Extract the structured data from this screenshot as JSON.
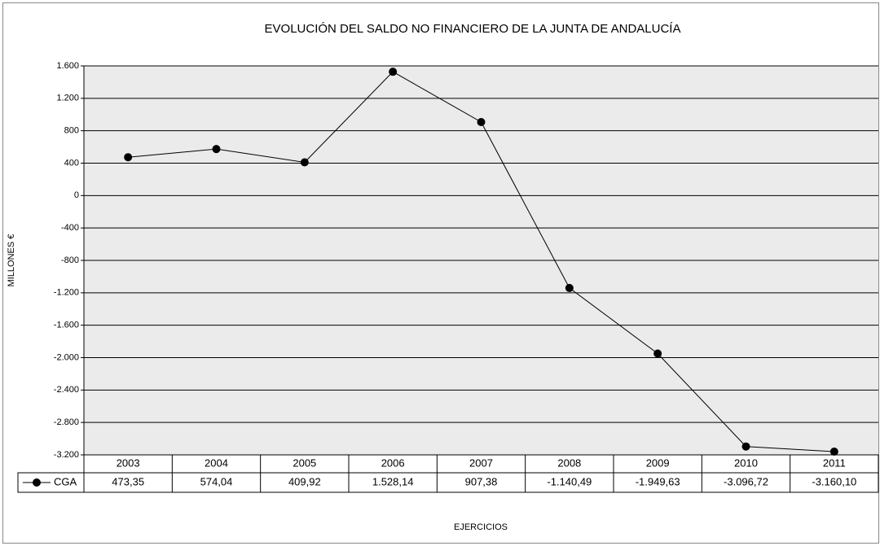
{
  "chart_data": {
    "type": "line",
    "title": "EVOLUCIÓN DEL SALDO NO FINANCIERO DE LA JUNTA DE ANDALUCÍA",
    "y_label": "MILLONES €",
    "x_label": "EJERCICIOS",
    "categories": [
      "2003",
      "2004",
      "2005",
      "2006",
      "2007",
      "2008",
      "2009",
      "2010",
      "2011"
    ],
    "series": [
      {
        "name": "CGA",
        "color": "#000000",
        "values": [
          473.35,
          574.04,
          409.92,
          1528.14,
          907.38,
          -1140.49,
          -1949.63,
          -3096.72,
          -3160.1
        ],
        "value_labels": [
          "473,35",
          "574,04",
          "409,92",
          "1.528,14",
          "907,38",
          "-1.140,49",
          "-1.949,63",
          "-3.096,72",
          "-3.160,10"
        ]
      }
    ],
    "ylim": [
      -3200,
      1600
    ],
    "yticks": [
      {
        "value": 1600,
        "label": "1.600"
      },
      {
        "value": 1200,
        "label": "1.200"
      },
      800,
      400,
      0,
      -400,
      -800,
      {
        "value": -1200,
        "label": "-1.200"
      },
      {
        "value": -1600,
        "label": "-1.600"
      },
      {
        "value": -2000,
        "label": "-2.000"
      },
      {
        "value": -2400,
        "label": "-2.400"
      },
      {
        "value": -2800,
        "label": "-2.800"
      },
      {
        "value": -3200,
        "label": "-3.200"
      }
    ],
    "grid": true,
    "background": "#ebebeb"
  }
}
